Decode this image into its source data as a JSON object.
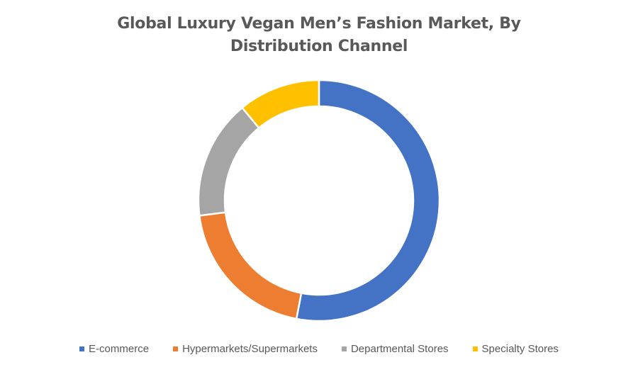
{
  "chart_data": {
    "type": "pie",
    "title_lines": [
      "Global Luxury Vegan Men’s Fashion Market, By",
      "Distribution Channel"
    ],
    "categories": [
      "E-commerce",
      "Hypermarkets/Supermarkets",
      "Departmental Stores",
      "Specialty Stores"
    ],
    "values": [
      53,
      20,
      16,
      11
    ],
    "colors": [
      "#4472C4",
      "#ED7D31",
      "#A5A5A5",
      "#FFC000"
    ],
    "donut": true,
    "legend_position": "bottom"
  }
}
